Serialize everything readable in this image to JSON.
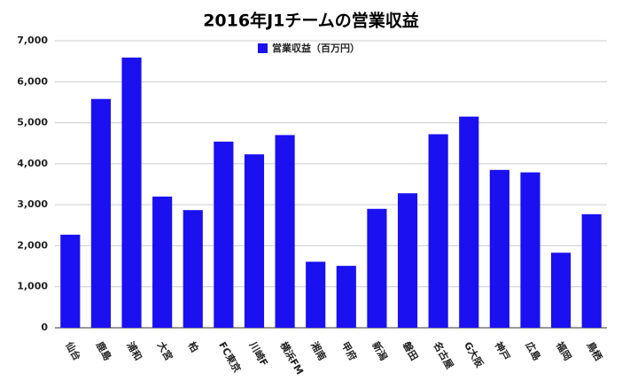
{
  "chart_data": {
    "type": "bar",
    "title": "2016年J1チームの営業収益",
    "categories": [
      "仙台",
      "鹿島",
      "浦和",
      "大宮",
      "柏",
      "FC東京",
      "川崎F",
      "横浜FM",
      "湘南",
      "甲府",
      "新潟",
      "磐田",
      "名古屋",
      "G大阪",
      "神戸",
      "広島",
      "福岡",
      "鳥栖"
    ],
    "series": [
      {
        "name": "営業収益（百万円）",
        "color": "#1a10f0",
        "values": [
          2270,
          5580,
          6590,
          3200,
          2870,
          4540,
          4230,
          4700,
          1610,
          1510,
          2900,
          3280,
          4720,
          5150,
          3850,
          3790,
          1830,
          2770
        ]
      }
    ],
    "ylim": [
      0,
      7000
    ],
    "yticks": [
      0,
      {
        "value": 1000,
        "label": "1,000"
      },
      {
        "value": 2000,
        "label": "2,000"
      },
      {
        "value": 3000,
        "label": "3,000"
      },
      {
        "value": 4000,
        "label": "4,000"
      },
      {
        "value": 5000,
        "label": "5,000"
      },
      {
        "value": 6000,
        "label": "6,000"
      },
      {
        "value": 7000,
        "label": "7,000"
      }
    ],
    "grid": true,
    "legend": "top"
  }
}
